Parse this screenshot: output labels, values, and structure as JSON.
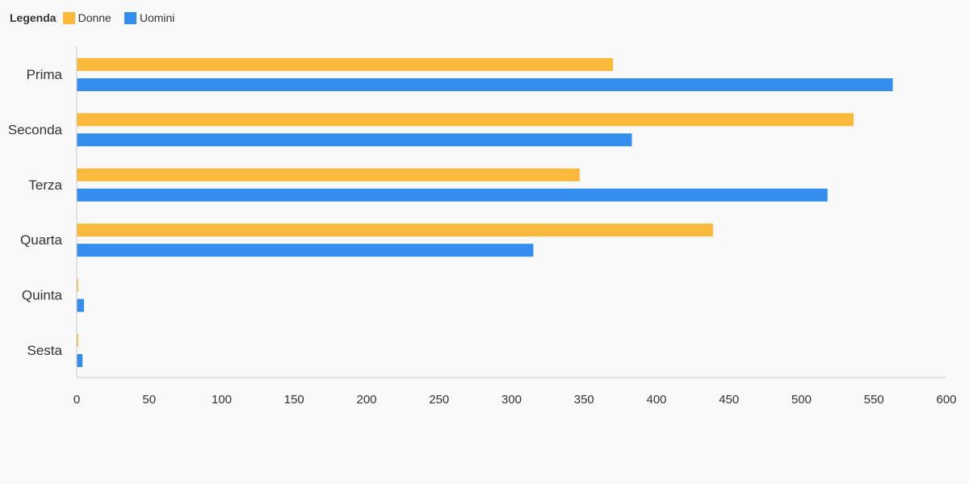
{
  "chart_data": {
    "type": "bar",
    "orientation": "horizontal",
    "legend": {
      "title": "Legenda",
      "placement": "top-left"
    },
    "categories": [
      "Prima",
      "Seconda",
      "Terza",
      "Quarta",
      "Quinta",
      "Sesta"
    ],
    "series": [
      {
        "name": "Donne",
        "color": "#fbb93b",
        "values": [
          370,
          536,
          347,
          439,
          1,
          1
        ]
      },
      {
        "name": "Uomini",
        "color": "#338ded",
        "values": [
          563,
          383,
          518,
          315,
          5,
          4
        ]
      }
    ],
    "x_ticks": [
      "0",
      "50",
      "100",
      "150",
      "200",
      "250",
      "300",
      "350",
      "400",
      "450",
      "500",
      "550",
      "600"
    ],
    "xlim": [
      0,
      600
    ],
    "grid": false
  }
}
